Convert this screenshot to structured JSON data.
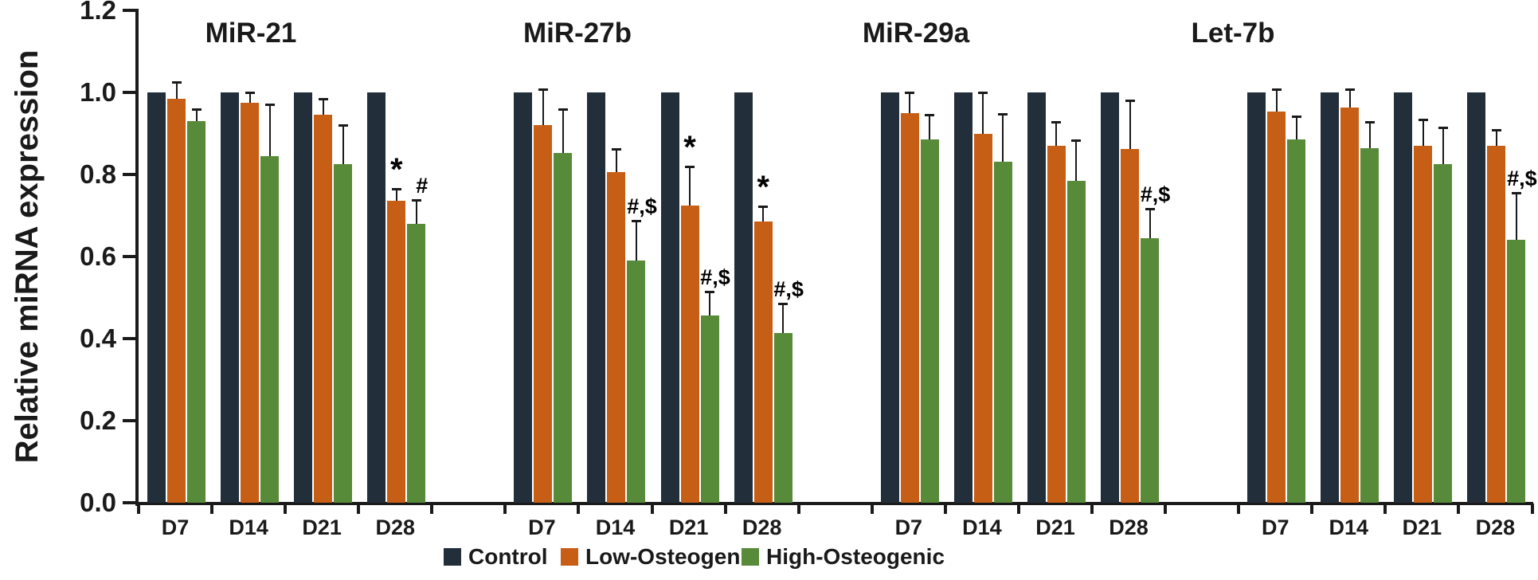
{
  "figure": {
    "ylabel": "Relative miRNA expression",
    "legend": [
      {
        "label": "Control",
        "color": "#232e3b"
      },
      {
        "label": "Low-Osteogenic",
        "color": "#c75e16"
      },
      {
        "label": "High-Osteogenic",
        "color": "#578a39"
      }
    ]
  },
  "chart_data": {
    "type": "bar",
    "title": "",
    "xlabel": "",
    "ylabel": "Relative miRNA expression",
    "ylim": [
      0,
      1.2
    ],
    "ytick_labels": [
      "0.0",
      "0.2",
      "0.4",
      "0.6",
      "0.8",
      "1.0",
      "1.2"
    ],
    "grid": false,
    "legend_position": "bottom",
    "error_bars": "upward whiskers with caps",
    "categories": [
      "D7",
      "D14",
      "D21",
      "D28"
    ],
    "series_names": [
      "Control",
      "Low-Osteogenic",
      "High-Osteogenic"
    ],
    "series_colors": {
      "Control": "#232e3b",
      "Low-Osteogenic": "#c75e16",
      "High-Osteogenic": "#578a39"
    },
    "groups": [
      {
        "name": "MiR-21",
        "series": [
          {
            "name": "Control",
            "values": [
              1.0,
              1.0,
              1.0,
              1.0
            ],
            "errors": [
              0,
              0,
              0,
              0
            ]
          },
          {
            "name": "Low-Osteogenic",
            "values": [
              0.985,
              0.975,
              0.945,
              0.735
            ],
            "errors": [
              0.04,
              0.025,
              0.04,
              0.03
            ]
          },
          {
            "name": "High-Osteogenic",
            "values": [
              0.93,
              0.845,
              0.825,
              0.68
            ],
            "errors": [
              0.03,
              0.125,
              0.095,
              0.058
            ]
          }
        ],
        "annotations": [
          {
            "day": "D28",
            "series": "Low-Osteogenic",
            "text": "*"
          },
          {
            "day": "D28",
            "series": "High-Osteogenic",
            "text": "#"
          }
        ]
      },
      {
        "name": "MiR-27b",
        "series": [
          {
            "name": "Control",
            "values": [
              1.0,
              1.0,
              1.0,
              1.0
            ],
            "errors": [
              0,
              0,
              0,
              0
            ]
          },
          {
            "name": "Low-Osteogenic",
            "values": [
              0.92,
              0.805,
              0.725,
              0.685
            ],
            "errors": [
              0.088,
              0.057,
              0.094,
              0.037
            ]
          },
          {
            "name": "High-Osteogenic",
            "values": [
              0.852,
              0.59,
              0.457,
              0.413
            ],
            "errors": [
              0.108,
              0.097,
              0.058,
              0.073
            ]
          }
        ],
        "annotations": [
          {
            "day": "D14",
            "series": "High-Osteogenic",
            "text": "#,$"
          },
          {
            "day": "D21",
            "series": "Low-Osteogenic",
            "text": "*"
          },
          {
            "day": "D21",
            "series": "High-Osteogenic",
            "text": "#,$"
          },
          {
            "day": "D28",
            "series": "Low-Osteogenic",
            "text": "*"
          },
          {
            "day": "D28",
            "series": "High-Osteogenic",
            "text": "#,$"
          }
        ]
      },
      {
        "name": "MiR-29a",
        "series": [
          {
            "name": "Control",
            "values": [
              1.0,
              1.0,
              1.0,
              1.0
            ],
            "errors": [
              0,
              0,
              0,
              0
            ]
          },
          {
            "name": "Low-Osteogenic",
            "values": [
              0.95,
              0.9,
              0.87,
              0.862
            ],
            "errors": [
              0.05,
              0.1,
              0.058,
              0.118
            ]
          },
          {
            "name": "High-Osteogenic",
            "values": [
              0.885,
              0.832,
              0.784,
              0.645
            ],
            "errors": [
              0.061,
              0.116,
              0.1,
              0.071
            ]
          }
        ],
        "annotations": [
          {
            "day": "D28",
            "series": "High-Osteogenic",
            "text": "#,$"
          }
        ]
      },
      {
        "name": "Let-7b",
        "series": [
          {
            "name": "Control",
            "values": [
              1.0,
              1.0,
              1.0,
              1.0
            ],
            "errors": [
              0,
              0,
              0,
              0
            ]
          },
          {
            "name": "Low-Osteogenic",
            "values": [
              0.953,
              0.963,
              0.87,
              0.87
            ],
            "errors": [
              0.055,
              0.044,
              0.064,
              0.038
            ]
          },
          {
            "name": "High-Osteogenic",
            "values": [
              0.885,
              0.865,
              0.825,
              0.64
            ],
            "errors": [
              0.057,
              0.063,
              0.09,
              0.116
            ]
          }
        ],
        "annotations": [
          {
            "day": "D28",
            "series": "High-Osteogenic",
            "text": "#,$"
          }
        ]
      }
    ]
  }
}
